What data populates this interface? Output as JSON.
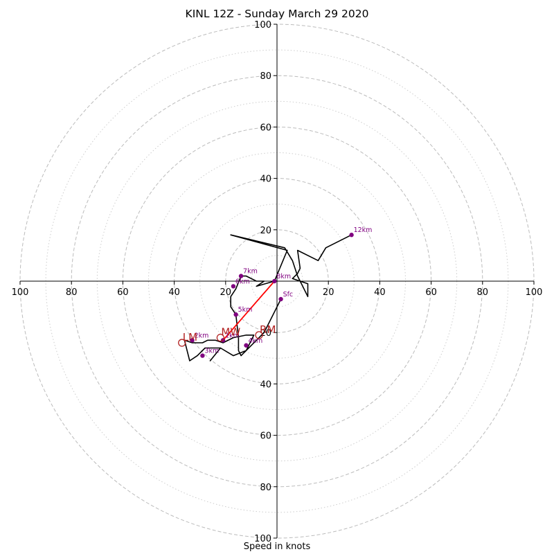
{
  "title": "KINL 12Z - Sunday March 29 2020",
  "xlabel": "Speed in knots",
  "chart_data": {
    "type": "hodograph",
    "units": "knots",
    "axis_range": [
      -100,
      100
    ],
    "ring_values_dashed": [
      20,
      40,
      60,
      80,
      100
    ],
    "ring_values_dotted": [
      10,
      30,
      50,
      70,
      90
    ],
    "tick_labels": [
      "100",
      "80",
      "60",
      "40",
      "20",
      "20",
      "40",
      "60",
      "80",
      "100"
    ],
    "tick_values": [
      -100,
      -80,
      -60,
      -40,
      -20,
      20,
      40,
      60,
      80,
      100
    ],
    "trace": [
      [
        1.5,
        -7
      ],
      [
        -5,
        -20
      ],
      [
        -12,
        -27
      ],
      [
        -17,
        -29
      ],
      [
        -22,
        -26
      ],
      [
        -26,
        -31
      ],
      [
        -22,
        -26
      ],
      [
        -28,
        -26
      ],
      [
        -31,
        -29
      ],
      [
        -34,
        -31
      ],
      [
        -36,
        -23
      ],
      [
        -33,
        -24
      ],
      [
        -29,
        -24
      ],
      [
        -27,
        -23
      ],
      [
        -24,
        -23
      ],
      [
        -21,
        -24
      ],
      [
        -17,
        -22
      ],
      [
        -12,
        -21
      ],
      [
        -9,
        -21
      ],
      [
        -12,
        -27
      ],
      [
        -14,
        -29
      ],
      [
        -15,
        -27
      ],
      [
        -15,
        -22
      ],
      [
        -16,
        -13
      ],
      [
        -18,
        -10
      ],
      [
        -18,
        -6
      ],
      [
        -16,
        -3
      ],
      [
        -14,
        2
      ],
      [
        -12,
        2
      ],
      [
        -8,
        0
      ],
      [
        -5,
        0
      ],
      [
        -8,
        -2
      ],
      [
        -1,
        0
      ],
      [
        4,
        12
      ],
      [
        -18,
        18
      ],
      [
        3,
        13
      ],
      [
        6,
        8
      ],
      [
        8,
        2
      ],
      [
        10,
        -2
      ],
      [
        12,
        -6
      ],
      [
        12,
        -1
      ],
      [
        6,
        1
      ],
      [
        8,
        3
      ],
      [
        9,
        5
      ],
      [
        8,
        12
      ],
      [
        16,
        8
      ],
      [
        19,
        13
      ],
      [
        29,
        18
      ]
    ],
    "points": [
      {
        "label": "Sfc",
        "x": 1.5,
        "y": -7
      },
      {
        "label": "1km",
        "x": -21,
        "y": -23
      },
      {
        "label": "2km",
        "x": -33,
        "y": -23
      },
      {
        "label": "3km",
        "x": -29,
        "y": -29
      },
      {
        "label": "4km",
        "x": -12,
        "y": -25
      },
      {
        "label": "5km",
        "x": -16,
        "y": -13
      },
      {
        "label": "6km",
        "x": -17,
        "y": -2
      },
      {
        "label": "7km",
        "x": -14,
        "y": 2
      },
      {
        "label": "8km",
        "x": -1,
        "y": 0
      },
      {
        "label": "12km",
        "x": 29,
        "y": 18
      }
    ],
    "shear_vector": {
      "from": [
        -21,
        -23
      ],
      "to": [
        -1,
        0
      ]
    },
    "motions": [
      {
        "label": "LM",
        "x": -37,
        "y": -24
      },
      {
        "label": "MW",
        "x": -22,
        "y": -22
      },
      {
        "label": "RM",
        "x": -7,
        "y": -21
      }
    ],
    "colors": {
      "trace": "#000000",
      "points": "#800080",
      "shear": "#ff0000",
      "motion": "#b22222",
      "rings": "#bbbbbb"
    }
  }
}
